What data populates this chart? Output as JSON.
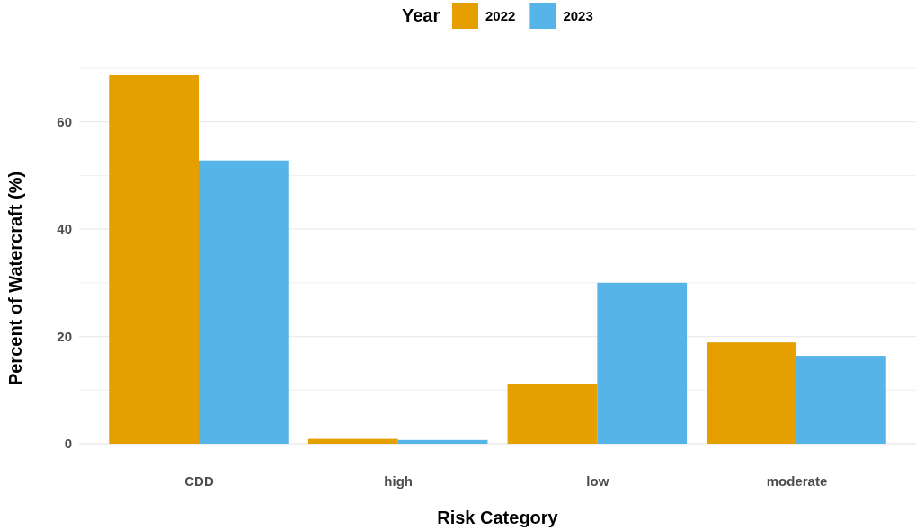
{
  "chart_data": {
    "type": "bar",
    "xlabel": "Risk Category",
    "ylabel": "Percent of Watercraft (%)",
    "legend_title": "Year",
    "legend": "top",
    "categories": [
      "CDD",
      "high",
      "low",
      "moderate"
    ],
    "series": [
      {
        "name": "2022",
        "color": "#e69f00",
        "values": [
          68.7,
          0.9,
          11.2,
          18.9
        ]
      },
      {
        "name": "2023",
        "color": "#56b4e9",
        "values": [
          52.8,
          0.7,
          30.0,
          16.4
        ]
      }
    ],
    "ylim": [
      0,
      70
    ],
    "yticks": [
      0,
      {
        "value": 10,
        "label": null
      },
      20,
      {
        "value": 30,
        "label": null
      },
      40,
      {
        "value": 50,
        "label": null
      },
      60,
      {
        "value": 70,
        "label": null
      }
    ],
    "grid": "y"
  }
}
